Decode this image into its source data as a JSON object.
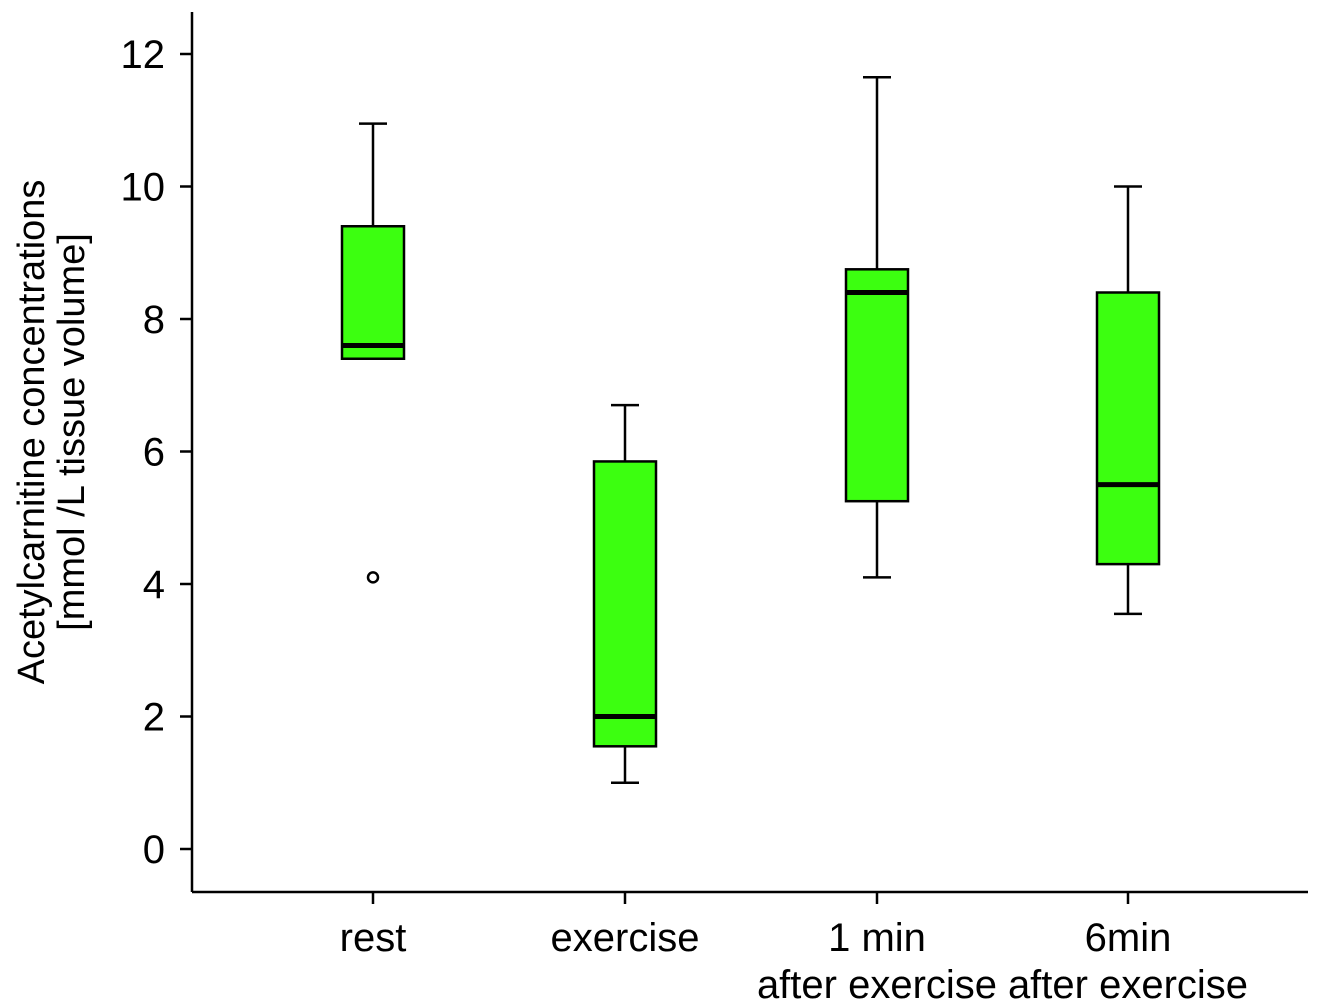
{
  "chart_data": {
    "type": "boxplot",
    "title": "",
    "ylabel_lines": [
      "Acetylcarnitine concentrations",
      "[mmol /L tissue volume]"
    ],
    "xlabel": "",
    "ylim": [
      -0.65,
      12.65
    ],
    "yticks": [
      0,
      2,
      4,
      6,
      8,
      10,
      12
    ],
    "ytick_labels": [
      "0",
      "2",
      "4",
      "6",
      "8",
      "10",
      "12"
    ],
    "fill_color": "#3CFF10",
    "stroke_color": "#000000",
    "groups": [
      {
        "label_lines": [
          "rest"
        ],
        "whisker_low": 7.4,
        "q1": 7.4,
        "median": 7.6,
        "q3": 9.4,
        "whisker_high": 10.95,
        "outliers": [
          4.1
        ]
      },
      {
        "label_lines": [
          "exercise"
        ],
        "whisker_low": 1.0,
        "q1": 1.55,
        "median": 2.0,
        "q3": 5.85,
        "whisker_high": 6.7,
        "outliers": []
      },
      {
        "label_lines": [
          "1 min",
          "after exercise"
        ],
        "whisker_low": 4.1,
        "q1": 5.25,
        "median": 8.4,
        "q3": 8.75,
        "whisker_high": 11.65,
        "outliers": []
      },
      {
        "label_lines": [
          "6min",
          "after exercise"
        ],
        "whisker_low": 3.55,
        "q1": 4.3,
        "median": 5.5,
        "q3": 8.4,
        "whisker_high": 10.0,
        "outliers": []
      }
    ]
  }
}
